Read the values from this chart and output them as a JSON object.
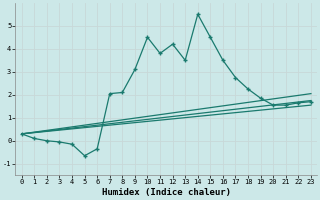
{
  "xlabel": "Humidex (Indice chaleur)",
  "bg_color": "#cce8e8",
  "grid_color": "#d4e8e8",
  "line_color": "#1a7a6e",
  "xlim": [
    -0.5,
    23.5
  ],
  "ylim": [
    -1.5,
    6.0
  ],
  "yticks": [
    -1,
    0,
    1,
    2,
    3,
    4,
    5
  ],
  "xticks": [
    0,
    1,
    2,
    3,
    4,
    5,
    6,
    7,
    8,
    9,
    10,
    11,
    12,
    13,
    14,
    15,
    16,
    17,
    18,
    19,
    20,
    21,
    22,
    23
  ],
  "main_x": [
    0,
    1,
    2,
    3,
    4,
    5,
    6,
    7,
    8,
    9,
    10,
    11,
    12,
    13,
    14,
    15,
    16,
    17,
    18,
    19,
    20,
    21,
    22,
    23
  ],
  "main_y": [
    0.3,
    0.1,
    0.0,
    -0.05,
    -0.15,
    -0.65,
    -0.35,
    2.05,
    2.1,
    3.1,
    4.5,
    3.8,
    4.2,
    3.5,
    5.5,
    4.5,
    3.5,
    2.75,
    2.25,
    1.85,
    1.55,
    1.55,
    1.65,
    1.7
  ],
  "line1_x": [
    0,
    23
  ],
  "line1_y": [
    0.3,
    2.05
  ],
  "line2_x": [
    0,
    23
  ],
  "line2_y": [
    0.3,
    1.75
  ],
  "line3_x": [
    0,
    23
  ],
  "line3_y": [
    0.3,
    1.55
  ],
  "xlabel_fontsize": 6.5,
  "tick_fontsize": 5.0
}
